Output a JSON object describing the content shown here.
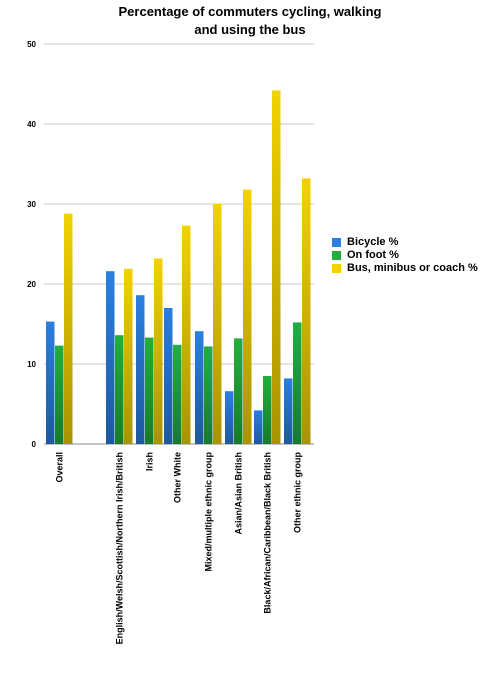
{
  "chart_data": {
    "type": "bar",
    "title_lines": [
      "Percentage of commuters cycling, walking",
      "and using the bus"
    ],
    "categories": [
      "Overall",
      "English/Welsh/Scottish/Northern Irish/British",
      "Irish",
      "Other White",
      "Mixed/multiple ethnic group",
      "Asian/Asian British",
      "Black/African/Caribbean/Black British",
      "Other ethnic group"
    ],
    "series": [
      {
        "name": "Bicycle %",
        "color": "#2a7fe0",
        "values": [
          15.3,
          21.6,
          18.6,
          17.0,
          14.1,
          6.6,
          4.2,
          8.2
        ]
      },
      {
        "name": "On foot %",
        "color": "#22b03a",
        "values": [
          12.3,
          13.6,
          13.3,
          12.4,
          12.2,
          13.2,
          8.5,
          15.2
        ]
      },
      {
        "name": "Bus, minibus or coach %",
        "color": "#f2d200",
        "values": [
          28.8,
          21.9,
          23.2,
          27.3,
          30.0,
          31.8,
          44.2,
          33.2
        ]
      }
    ],
    "yticks": [
      "0",
      "10",
      "20",
      "30",
      "40",
      "50"
    ],
    "ylim": [
      0,
      50
    ],
    "grid": true,
    "legend": "right"
  }
}
